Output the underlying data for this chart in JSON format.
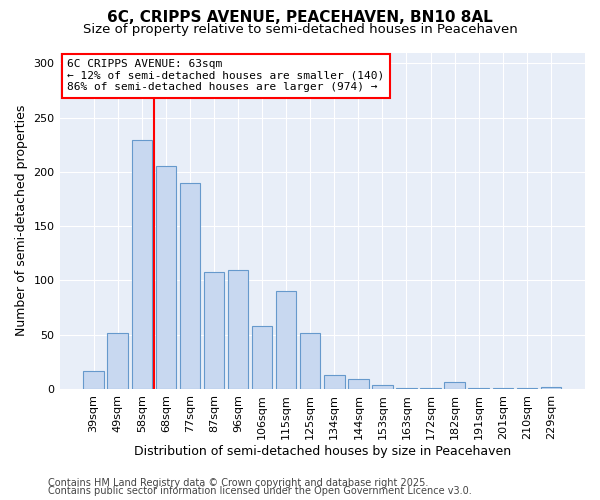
{
  "title": "6C, CRIPPS AVENUE, PEACEHAVEN, BN10 8AL",
  "subtitle": "Size of property relative to semi-detached houses in Peacehaven",
  "xlabel": "Distribution of semi-detached houses by size in Peacehaven",
  "ylabel": "Number of semi-detached properties",
  "categories": [
    "39sqm",
    "49sqm",
    "58sqm",
    "68sqm",
    "77sqm",
    "87sqm",
    "96sqm",
    "106sqm",
    "115sqm",
    "125sqm",
    "134sqm",
    "144sqm",
    "153sqm",
    "163sqm",
    "172sqm",
    "182sqm",
    "191sqm",
    "201sqm",
    "210sqm",
    "229sqm"
  ],
  "values": [
    17,
    52,
    229,
    205,
    190,
    108,
    110,
    58,
    90,
    52,
    13,
    9,
    4,
    1,
    1,
    6,
    1,
    1,
    1,
    2
  ],
  "bar_color": "#c8d8f0",
  "bar_edge_color": "#6699cc",
  "vline_x": 2.5,
  "vline_color": "red",
  "annotation_title": "6C CRIPPS AVENUE: 63sqm",
  "annotation_line1": "← 12% of semi-detached houses are smaller (140)",
  "annotation_line2": "86% of semi-detached houses are larger (974) →",
  "annotation_box_color": "white",
  "annotation_box_edge": "red",
  "ylim": [
    0,
    310
  ],
  "yticks": [
    0,
    50,
    100,
    150,
    200,
    250,
    300
  ],
  "footnote1": "Contains HM Land Registry data © Crown copyright and database right 2025.",
  "footnote2": "Contains public sector information licensed under the Open Government Licence v3.0.",
  "bg_color": "#ffffff",
  "plot_bg_color": "#e8eef8",
  "title_fontsize": 11,
  "subtitle_fontsize": 9.5,
  "tick_fontsize": 8,
  "label_fontsize": 9,
  "footnote_fontsize": 7
}
